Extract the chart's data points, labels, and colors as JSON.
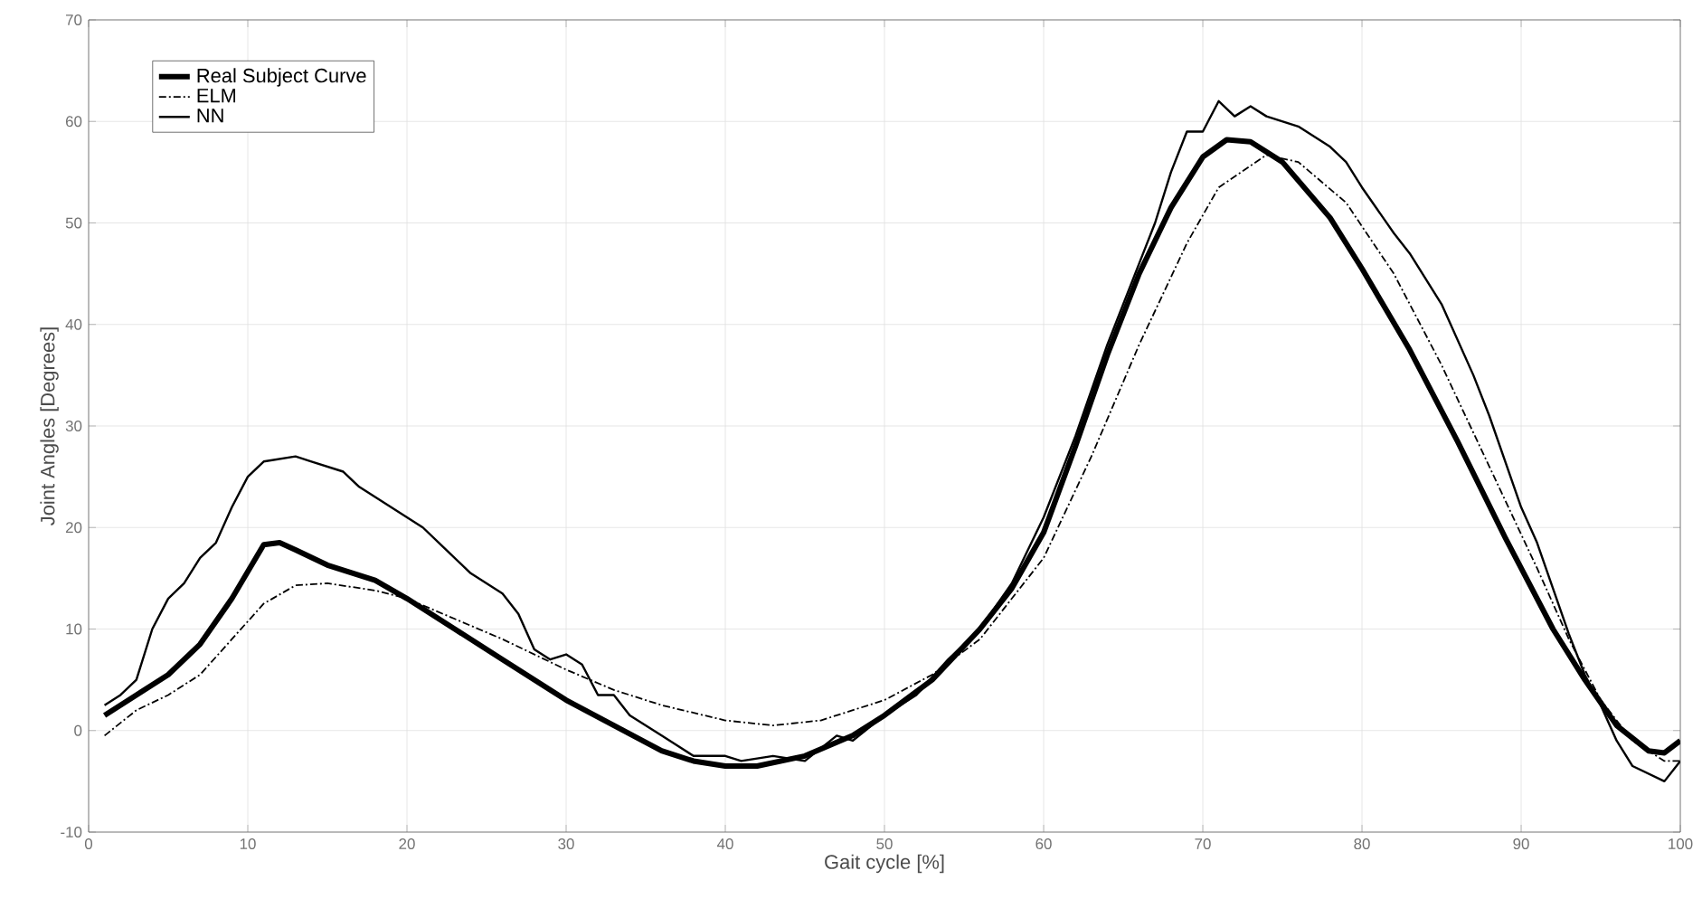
{
  "chart_data": {
    "type": "line",
    "xlabel": "Gait cycle [%]",
    "ylabel": "Joint Angles [Degrees]",
    "xlim": [
      0,
      100
    ],
    "ylim": [
      -10,
      70
    ],
    "xticks": [
      0,
      10,
      20,
      30,
      40,
      50,
      60,
      70,
      80,
      90,
      100
    ],
    "yticks": [
      -10,
      0,
      10,
      20,
      30,
      40,
      50,
      60,
      70
    ],
    "grid": true,
    "legend": "top left",
    "series": [
      {
        "name": "Real Subject Curve",
        "color": "#000000",
        "line_style": "solid",
        "x": [
          1,
          3,
          5,
          7,
          9,
          11,
          12,
          13,
          15,
          18,
          20,
          23,
          26,
          30,
          33,
          36,
          38,
          40,
          42,
          45,
          48,
          50,
          53,
          56,
          58,
          60,
          62,
          64,
          66,
          68,
          70,
          71.5,
          73,
          75,
          78,
          80,
          83,
          86,
          89,
          92,
          94,
          96,
          98,
          99,
          100
        ],
        "values": [
          1.5,
          3.5,
          5.5,
          8.5,
          13,
          18.3,
          18.5,
          17.8,
          16.3,
          14.8,
          13,
          10,
          7,
          3,
          0.5,
          -2,
          -3,
          -3.5,
          -3.5,
          -2.5,
          -0.5,
          1.5,
          5,
          10,
          14,
          19.5,
          28,
          37,
          45,
          51.5,
          56.5,
          58.2,
          58,
          56,
          50.5,
          45.5,
          37.5,
          28.5,
          19,
          10,
          5,
          0.5,
          -2,
          -2.2,
          -1
        ]
      },
      {
        "name": "ELM",
        "color": "#000000",
        "line_style": "dashdot",
        "x": [
          1,
          3,
          5,
          7,
          9,
          11,
          13,
          15,
          18,
          20,
          23,
          26,
          30,
          33,
          36,
          40,
          43,
          46,
          50,
          53,
          56,
          60,
          63,
          66,
          69,
          71,
          74,
          76,
          79,
          82,
          85,
          88,
          91,
          93,
          95,
          97,
          99,
          100
        ],
        "values": [
          -0.5,
          2,
          3.5,
          5.5,
          9,
          12.5,
          14.3,
          14.5,
          13.8,
          13,
          11,
          9,
          6,
          4,
          2.5,
          1,
          0.5,
          1,
          3,
          5.5,
          9,
          17,
          27,
          38,
          48,
          53.5,
          56.7,
          56,
          52,
          45,
          36,
          26,
          16,
          9,
          3,
          -1,
          -3,
          -3
        ]
      },
      {
        "name": "NN",
        "color": "#000000",
        "line_style": "solid",
        "x": [
          1,
          2,
          3,
          4,
          5,
          6,
          7,
          8,
          9,
          10,
          11,
          13,
          14,
          16,
          17,
          19,
          21,
          22,
          24,
          26,
          27,
          28,
          29,
          30,
          31,
          32,
          33,
          34,
          36,
          37,
          38,
          40,
          41,
          43,
          45,
          47,
          48,
          50,
          52,
          54,
          56,
          58,
          60,
          62,
          64,
          66,
          67,
          68,
          69,
          70,
          71,
          72,
          73,
          74,
          76,
          78,
          79,
          80,
          82,
          83,
          85,
          87,
          88,
          90,
          91,
          92,
          93,
          94,
          95,
          96,
          97,
          99,
          100
        ],
        "values": [
          2.5,
          3.5,
          5,
          10,
          13,
          14.5,
          17,
          18.5,
          22,
          25,
          26.5,
          27,
          26.5,
          25.5,
          24,
          22,
          20,
          18.5,
          15.5,
          13.5,
          11.5,
          8,
          7,
          7.5,
          6.5,
          3.5,
          3.5,
          1.5,
          -0.5,
          -1.5,
          -2.5,
          -2.5,
          -3,
          -2.5,
          -3,
          -0.5,
          -1,
          1.5,
          3.5,
          7,
          10,
          14.5,
          21,
          29,
          38,
          46,
          50,
          55,
          59,
          59,
          62,
          60.5,
          61.5,
          60.5,
          59.5,
          57.5,
          56,
          53.5,
          49,
          47,
          42,
          35,
          31,
          22,
          18.5,
          14,
          9.5,
          5.5,
          2.5,
          -1,
          -3.5,
          -5,
          -3
        ]
      }
    ]
  }
}
